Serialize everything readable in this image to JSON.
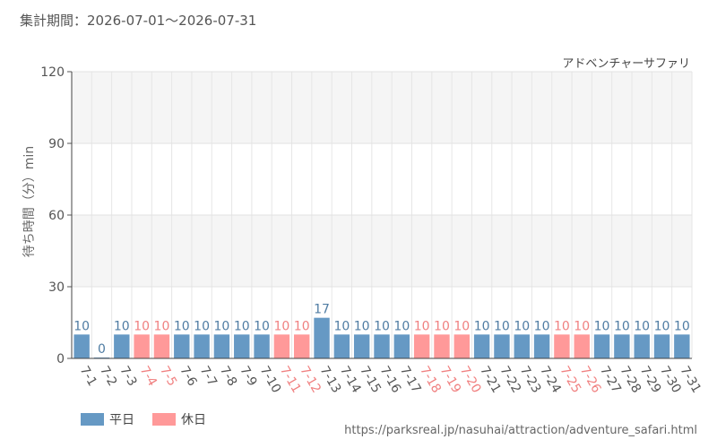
{
  "header": {
    "period": "集計期間：2026-07-01～2026-07-31",
    "attraction": "アドベンチャーサファリ"
  },
  "footer": {
    "source": "https://parksreal.jp/nasuhai/attraction/adventure_safari.html"
  },
  "colors": {
    "weekday": "#6699c4",
    "holiday": "#ff9999",
    "weekday_text": "#4f7ca3",
    "holiday_text": "#f08080"
  },
  "chart_data": {
    "type": "bar",
    "ylabel": "待ち時間（分）min",
    "ylim": [
      0,
      120
    ],
    "yticks": [
      0,
      30,
      60,
      90,
      120
    ],
    "categories": [
      "7-1",
      "7-2",
      "7-3",
      "7-4",
      "7-5",
      "7-6",
      "7-7",
      "7-8",
      "7-9",
      "7-10",
      "7-11",
      "7-12",
      "7-13",
      "7-14",
      "7-15",
      "7-16",
      "7-17",
      "7-18",
      "7-19",
      "7-20",
      "7-21",
      "7-22",
      "7-23",
      "7-24",
      "7-25",
      "7-26",
      "7-27",
      "7-28",
      "7-29",
      "7-30",
      "7-31"
    ],
    "values": [
      10,
      0,
      10,
      10,
      10,
      10,
      10,
      10,
      10,
      10,
      10,
      10,
      17,
      10,
      10,
      10,
      10,
      10,
      10,
      10,
      10,
      10,
      10,
      10,
      10,
      10,
      10,
      10,
      10,
      10,
      10
    ],
    "day_type": [
      "平日",
      "平日",
      "平日",
      "休日",
      "休日",
      "平日",
      "平日",
      "平日",
      "平日",
      "平日",
      "休日",
      "休日",
      "平日",
      "平日",
      "平日",
      "平日",
      "平日",
      "休日",
      "休日",
      "休日",
      "平日",
      "平日",
      "平日",
      "平日",
      "休日",
      "休日",
      "平日",
      "平日",
      "平日",
      "平日",
      "平日"
    ],
    "legend": [
      {
        "name": "平日",
        "color": "#6699c4"
      },
      {
        "name": "休日",
        "color": "#ff9999"
      }
    ],
    "grid": true,
    "legend_position": "bottom-left"
  }
}
